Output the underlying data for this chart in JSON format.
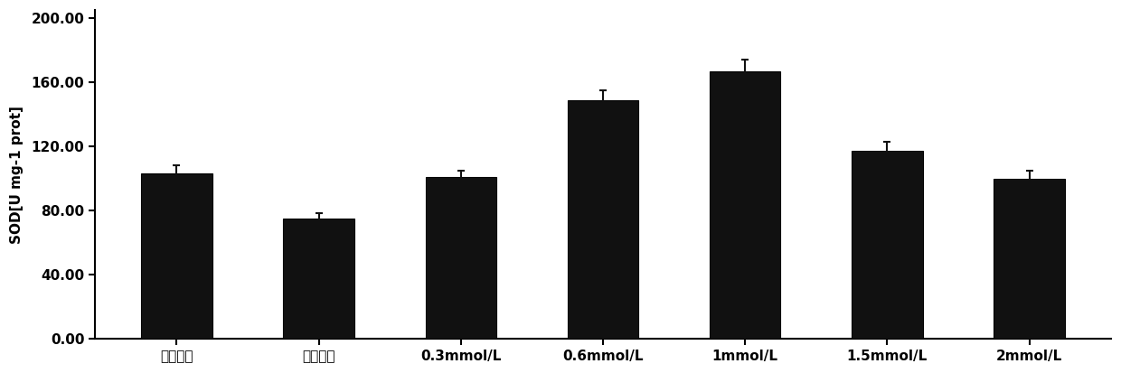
{
  "categories": [
    "正常对照",
    "单纯淤水",
    "0.3mmol/L",
    "0.6mmol/L",
    "1mmol/L",
    "1.5mmol/L",
    "2mmol/L"
  ],
  "values": [
    103.0,
    75.0,
    101.0,
    149.0,
    167.0,
    117.0,
    100.0
  ],
  "errors": [
    5.0,
    3.5,
    4.0,
    6.0,
    7.0,
    6.0,
    5.0
  ],
  "bar_color": "#111111",
  "bar_edgecolor": "#000000",
  "bar_width": 0.5,
  "ylabel": "SOD[U mg-1 prot]",
  "ylim": [
    0,
    205
  ],
  "yticks": [
    0.0,
    40.0,
    80.0,
    120.0,
    160.0,
    200.0
  ],
  "ytick_labels": [
    "0.00",
    "40.00",
    "80.00",
    "120.00",
    "160.00",
    "200.00"
  ],
  "background_color": "#ffffff",
  "plot_bg_color": "#ffffff",
  "tick_fontsize": 11,
  "ylabel_fontsize": 11,
  "xlabel_fontsize": 11,
  "error_capsize": 3,
  "error_linewidth": 1.5,
  "error_color": "#111111",
  "spine_color": "#000000",
  "spine_linewidth": 1.5
}
